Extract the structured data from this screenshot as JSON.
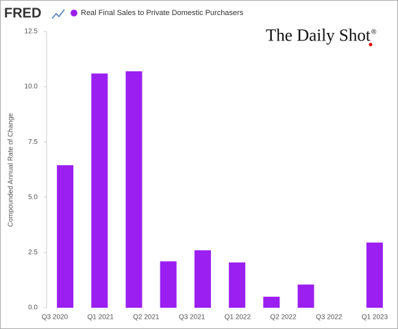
{
  "chart_data": {
    "type": "bar",
    "logo": "FRED",
    "watermark": "The Daily Shot",
    "watermark_mark": "®",
    "y_axis_label": "Compounded Annual Rate of Change",
    "series_name": "Real Final Sales to Private Domestic Purchasers",
    "color": "#9a1ff0",
    "values": [
      6.45,
      10.6,
      10.7,
      2.1,
      2.6,
      2.05,
      0.5,
      1.05,
      null,
      2.95
    ],
    "x_tick_labels": [
      "Q3 2020",
      "Q1 2021",
      "Q2 2021",
      "Q3 2021",
      "Q1 2022",
      "Q2 2022",
      "Q3 2022",
      "Q1 2023"
    ],
    "ylim": [
      0,
      12.5
    ],
    "yticks": [
      {
        "value": 0,
        "label": "0.0"
      },
      {
        "value": 2.5,
        "label": "2.5"
      },
      {
        "value": 5,
        "label": "5.0"
      },
      {
        "value": 7.5,
        "label": "7.5"
      },
      {
        "value": 10,
        "label": "10.0"
      },
      {
        "value": 12.5,
        "label": "12.5"
      }
    ]
  }
}
